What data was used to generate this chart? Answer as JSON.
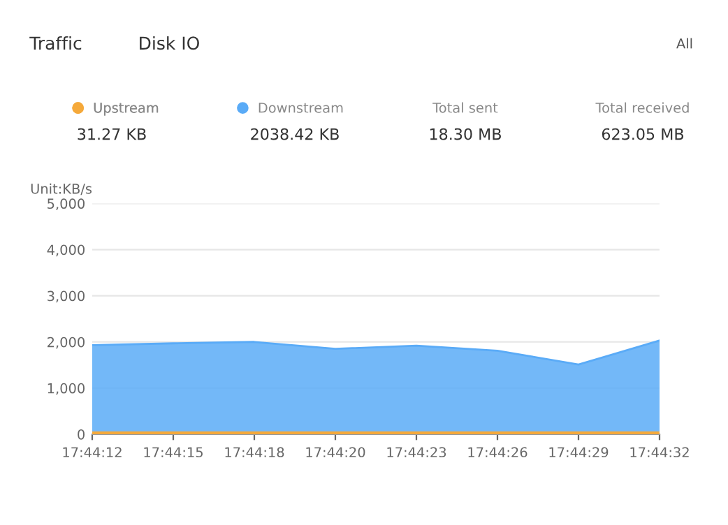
{
  "chart_data": {
    "type": "area",
    "ylabel": "Unit:KB/s",
    "categories": [
      "17:44:12",
      "17:44:15",
      "17:44:18",
      "17:44:20",
      "17:44:23",
      "17:44:26",
      "17:44:29",
      "17:44:32"
    ],
    "series": [
      {
        "name": "Upstream",
        "color": "#f5a93a",
        "type": "line",
        "values": [
          30,
          30,
          30,
          30,
          30,
          30,
          30,
          30
        ]
      },
      {
        "name": "Downstream",
        "color": "#5aabf7",
        "values": [
          1930,
          1970,
          2000,
          1850,
          1920,
          1810,
          1510,
          2030
        ]
      }
    ],
    "ylim": [
      0,
      5000
    ],
    "yticks": [
      {
        "value": 0,
        "label": "0"
      },
      {
        "value": 1000,
        "label": "1,000"
      },
      {
        "value": 2000,
        "label": "2,000"
      },
      {
        "value": 3000,
        "label": "3,000"
      },
      {
        "value": 4000,
        "label": "4,000"
      },
      {
        "value": 5000,
        "label": "5,000"
      }
    ],
    "grid": "y",
    "legend": "top",
    "annotations": [
      "Traffic",
      "Disk IO",
      "All",
      "31.27 KB",
      "2038.42 KB",
      "Total sent",
      "18.30 MB",
      "Total received",
      "623.05 MB"
    ]
  }
}
